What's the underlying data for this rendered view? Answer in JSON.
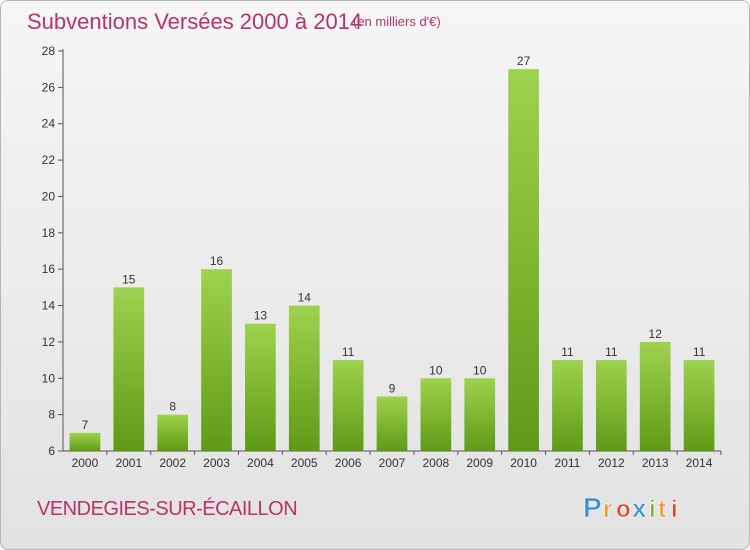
{
  "header": {
    "title": "Subventions Versées 2000 à 2014",
    "subtitle": "(en milliers d'€)"
  },
  "footer": {
    "place": "VENDEGIES-SUR-ÉCAILLON",
    "logo_text": "Proxiti"
  },
  "colors": {
    "title": "#b8336a",
    "bar_top": "#9fd24e",
    "bar_bottom": "#5f9a16"
  },
  "chart_data": {
    "type": "bar",
    "title": "Subventions Versées 2000 à 2014",
    "subtitle": "(en milliers d'€)",
    "categories": [
      "2000",
      "2001",
      "2002",
      "2003",
      "2004",
      "2005",
      "2006",
      "2007",
      "2008",
      "2009",
      "2010",
      "2011",
      "2012",
      "2013",
      "2014"
    ],
    "values": [
      7,
      15,
      8,
      16,
      13,
      14,
      11,
      9,
      10,
      10,
      27,
      11,
      11,
      12,
      11
    ],
    "ylim": [
      6,
      28
    ],
    "yticks": [
      6,
      8,
      10,
      12,
      14,
      16,
      18,
      20,
      22,
      24,
      26,
      28
    ],
    "grid": false,
    "legend": "none"
  }
}
